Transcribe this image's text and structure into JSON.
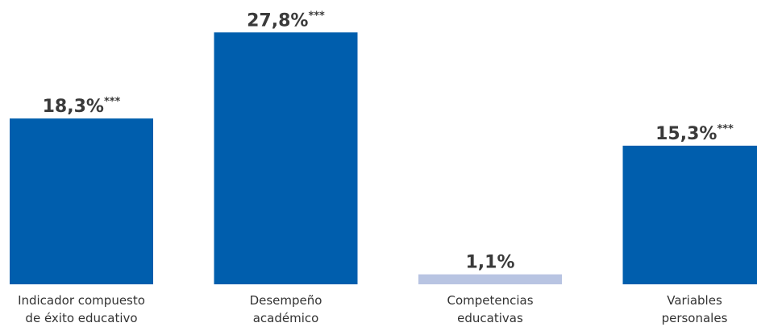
{
  "chart_data": {
    "type": "bar",
    "categories": [
      [
        "Indicador compuesto",
        "de éxito educativo"
      ],
      [
        "Desempeño",
        "académico"
      ],
      [
        "Competencias",
        "educativas"
      ],
      [
        "Variables",
        "personales"
      ]
    ],
    "values": [
      18.3,
      27.8,
      1.1,
      15.3
    ],
    "value_labels": [
      "18,3%",
      "27,8%",
      "1,1%",
      "15,3%"
    ],
    "significance": [
      "***",
      "***",
      "",
      "***"
    ],
    "colors": {
      "significant": "#005ead",
      "not_significant": "#b8c4e2"
    },
    "title": "",
    "xlabel": "",
    "ylabel": "",
    "ylim": [
      0,
      30
    ],
    "grid": false,
    "legend": "none"
  }
}
